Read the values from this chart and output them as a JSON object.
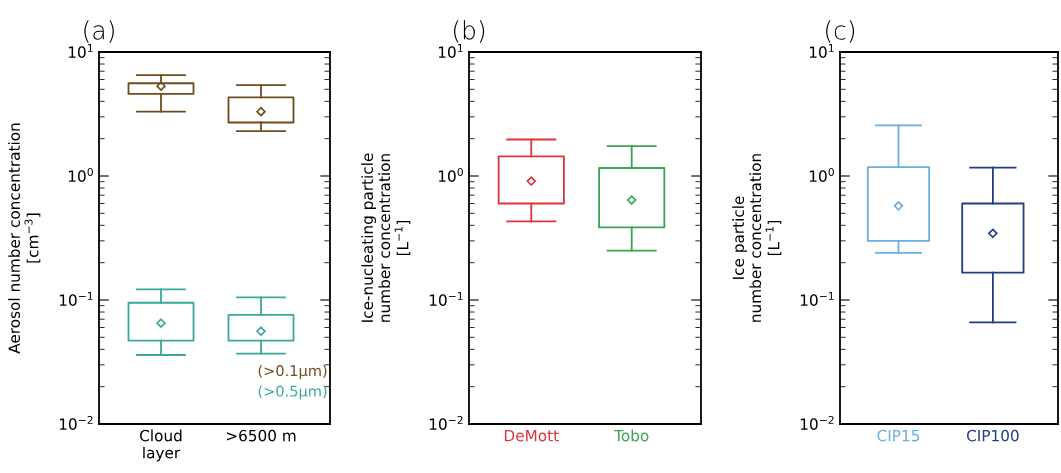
{
  "chart_data": [
    {
      "type": "box",
      "title": "(a)",
      "ylabel": "Aerosol number concentration\n[cm$^{−3}$]",
      "categories": [
        "Cloud\nlayer",
        ">6500 m"
      ],
      "log": "y",
      "ylim": [
        0.01,
        10
      ],
      "yticks": [
        {
          "value": 0.01,
          "label": "10$^{−2}$"
        },
        {
          "value": 0.1,
          "label": "10$^{−1}$"
        },
        {
          "value": 1,
          "label": "10$^{0}$"
        },
        {
          "value": 10,
          "label": "10$^{1}$"
        }
      ],
      "grid": false,
      "series": [
        {
          "name": "(>0.1μm)",
          "color": "#704c1c",
          "boxes": [
            {
              "low": 3.3,
              "q1": 4.6,
              "q3": 5.6,
              "high": 6.5,
              "mean": 5.3
            },
            {
              "low": 2.3,
              "q1": 2.7,
              "q3": 4.3,
              "high": 5.4,
              "mean": 3.3
            }
          ]
        },
        {
          "name": "(>0.5μm)",
          "color": "#3aa89a",
          "boxes": [
            {
              "low": 0.036,
              "q1": 0.047,
              "q3": 0.095,
              "high": 0.122,
              "mean": 0.065
            },
            {
              "low": 0.037,
              "q1": 0.047,
              "q3": 0.076,
              "high": 0.105,
              "mean": 0.056
            }
          ]
        }
      ]
    },
    {
      "type": "box",
      "title": "(b)",
      "ylabel": "Ice-nucleating particle\nnumber concentration\n[L$^{−1}$]",
      "categories": [
        "DeMott",
        "Tobo"
      ],
      "colors": [
        "#d9353a",
        "#3aa552"
      ],
      "log": "y",
      "ylim": [
        0.01,
        10
      ],
      "yticks": [
        {
          "value": 0.01,
          "label": "10$^{−2}$"
        },
        {
          "value": 0.1,
          "label": "10$^{−1}$"
        },
        {
          "value": 1,
          "label": "10$^{0}$"
        },
        {
          "value": 10,
          "label": "10$^{1}$"
        }
      ],
      "grid": false,
      "boxes": [
        {
          "low": 0.43,
          "q1": 0.6,
          "q3": 1.44,
          "high": 1.97,
          "mean": 0.91
        },
        {
          "low": 0.25,
          "q1": 0.385,
          "q3": 1.16,
          "high": 1.74,
          "mean": 0.64
        }
      ]
    },
    {
      "type": "box",
      "title": "(c)",
      "ylabel": "Ice particle\nnumber concentration\n[L$^{−1}$]",
      "categories": [
        "CIP15",
        "CIP100"
      ],
      "colors": [
        "#6aaee0",
        "#1f3f7f"
      ],
      "log": "y",
      "ylim": [
        0.01,
        10
      ],
      "yticks": [
        {
          "value": 0.01,
          "label": "10$^{−2}$"
        },
        {
          "value": 0.1,
          "label": "10$^{−1}$"
        },
        {
          "value": 1,
          "label": "10$^{0}$"
        },
        {
          "value": 10,
          "label": "10$^{1}$"
        }
      ],
      "grid": false,
      "boxes": [
        {
          "low": 0.24,
          "q1": 0.3,
          "q3": 1.18,
          "high": 2.56,
          "mean": 0.575
        },
        {
          "low": 0.066,
          "q1": 0.166,
          "q3": 0.6,
          "high": 1.17,
          "mean": 0.345
        }
      ]
    }
  ]
}
